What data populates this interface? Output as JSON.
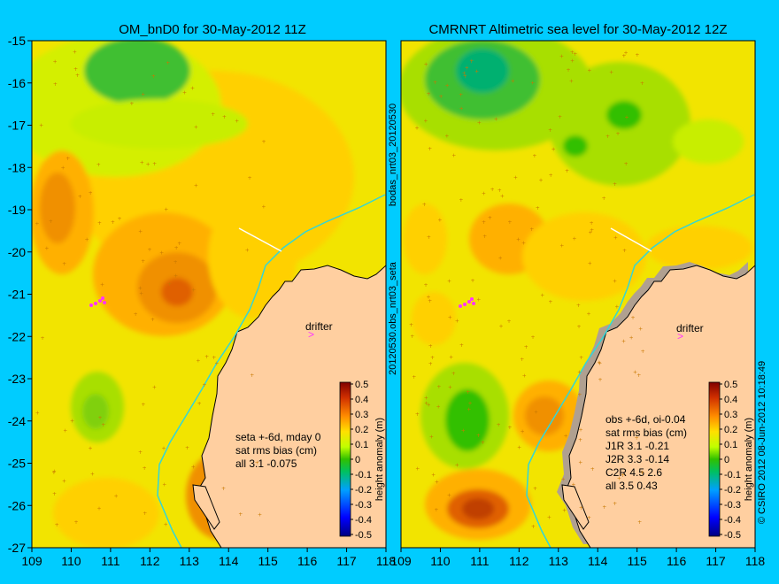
{
  "chart_data": [
    {
      "type": "heatmap",
      "title": "OM_bnD0 for 30-May-2012 11Z",
      "xlim": [
        109,
        118
      ],
      "ylim": [
        -27,
        -15
      ],
      "x_ticks": [
        "109",
        "110",
        "111",
        "112",
        "113",
        "114",
        "115",
        "116",
        "117",
        "118"
      ],
      "y_ticks": [
        "-15",
        "-16",
        "-17",
        "-18",
        "-19",
        "-20",
        "-21",
        "-22",
        "-23",
        "-24",
        "-25",
        "-26",
        "-27"
      ],
      "annotations": [
        "seta +-6d, mday 0",
        "sat rms bias (cm)",
        "all 3.1 -0.075",
        "drifter"
      ],
      "colorbar": {
        "label": "height anomaly (m)",
        "ticks": [
          "0.5",
          "0.4",
          "0.3",
          "0.2",
          "0.1",
          "0",
          "-0.1",
          "-0.2",
          "-0.3",
          "-0.4",
          "-0.5"
        ]
      },
      "highs": [
        {
          "lon": 112.8,
          "lat": -20.9,
          "value": 0.35
        },
        {
          "lon": 113.6,
          "lat": -25.9,
          "value": 0.45
        },
        {
          "lon": 109.9,
          "lat": -18.8,
          "value": 0.25
        },
        {
          "lon": 111.3,
          "lat": -20.3,
          "value": 0.25
        }
      ],
      "lows": [
        {
          "lon": 111.6,
          "lat": -15.7,
          "value": -0.05
        },
        {
          "lon": 110.8,
          "lat": -23.8,
          "value": -0.05
        }
      ]
    },
    {
      "type": "heatmap",
      "title": "CMRNRT Altimetric sea level  for 30-May-2012 12Z",
      "xlim": [
        109,
        118
      ],
      "ylim": [
        -27,
        -15
      ],
      "x_ticks": [
        "109",
        "110",
        "111",
        "112",
        "113",
        "114",
        "115",
        "116",
        "117",
        "118"
      ],
      "annotations": [
        "obs +-6d, oi-0.04",
        "sat rms bias (cm)",
        "J1R   3.1  -0.21",
        "J2R   3.3  -0.14",
        "C2R   4.5  2.6",
        "all  3.5  0.43",
        "drifter"
      ],
      "colorbar": {
        "label": "height anomaly (m)",
        "ticks": [
          "0.5",
          "0.4",
          "0.3",
          "0.2",
          "0.1",
          "0",
          "-0.1",
          "-0.2",
          "-0.3",
          "-0.4",
          "-0.5"
        ]
      },
      "highs": [
        {
          "lon": 110.9,
          "lat": -26.0,
          "value": 0.35
        },
        {
          "lon": 112.9,
          "lat": -24.2,
          "value": 0.35
        },
        {
          "lon": 110.9,
          "lat": -19.8,
          "value": 0.25
        }
      ],
      "lows": [
        {
          "lon": 111.2,
          "lat": -16.0,
          "value": -0.1
        },
        {
          "lon": 110.8,
          "lat": -24.0,
          "value": -0.15
        },
        {
          "lon": 114.0,
          "lat": -16.8,
          "value": -0.05
        }
      ]
    }
  ],
  "side_labels": {
    "left_run": "bodas_nrt03_20120530",
    "left_obs": "20120530.obs_nrt03_seta",
    "right": "© CSIRO 2012   08-Jun-2012 10:18:49"
  },
  "colors": {
    "background": "#00ccff",
    "land": "#ffcfa0",
    "track": "#33d6d6",
    "drifter": "#ff33ff"
  }
}
